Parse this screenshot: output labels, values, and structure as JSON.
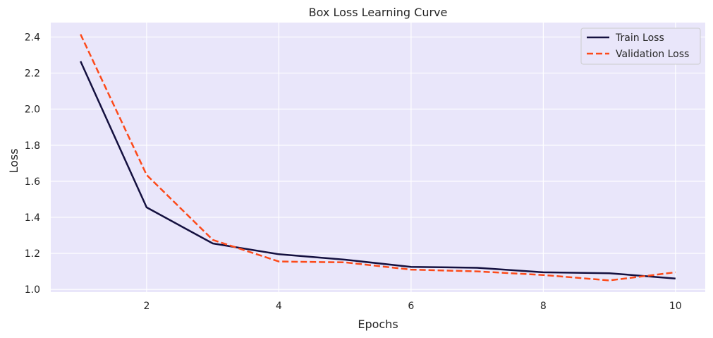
{
  "chart_data": {
    "type": "line",
    "title": "Box Loss Learning Curve",
    "xlabel": "Epochs",
    "ylabel": "Loss",
    "x": [
      1,
      2,
      3,
      4,
      5,
      6,
      7,
      8,
      9,
      10
    ],
    "xlim": [
      0.55,
      10.45
    ],
    "ylim": [
      0.985,
      2.48
    ],
    "xticks": [
      2,
      4,
      6,
      8,
      10
    ],
    "xtick_labels": [
      "2",
      "4",
      "6",
      "8",
      "10"
    ],
    "yticks": [
      1.0,
      1.2,
      1.4,
      1.6,
      1.8,
      2.0,
      2.2,
      2.4
    ],
    "ytick_labels": [
      "1.0",
      "1.2",
      "1.4",
      "1.6",
      "1.8",
      "2.0",
      "2.2",
      "2.4"
    ],
    "grid": true,
    "legend_position": "top-right",
    "background_color": "#e9e6fa",
    "grid_color": "#ffffff",
    "series": [
      {
        "name": "Train Loss",
        "style": "solid",
        "color": "#14103f",
        "values": [
          2.265,
          1.455,
          1.255,
          1.195,
          1.165,
          1.125,
          1.12,
          1.095,
          1.09,
          1.06
        ]
      },
      {
        "name": "Validation Loss",
        "style": "dashed",
        "color": "#fc4a1a",
        "values": [
          2.415,
          1.635,
          1.275,
          1.155,
          1.15,
          1.11,
          1.1,
          1.08,
          1.05,
          1.095
        ]
      }
    ]
  }
}
